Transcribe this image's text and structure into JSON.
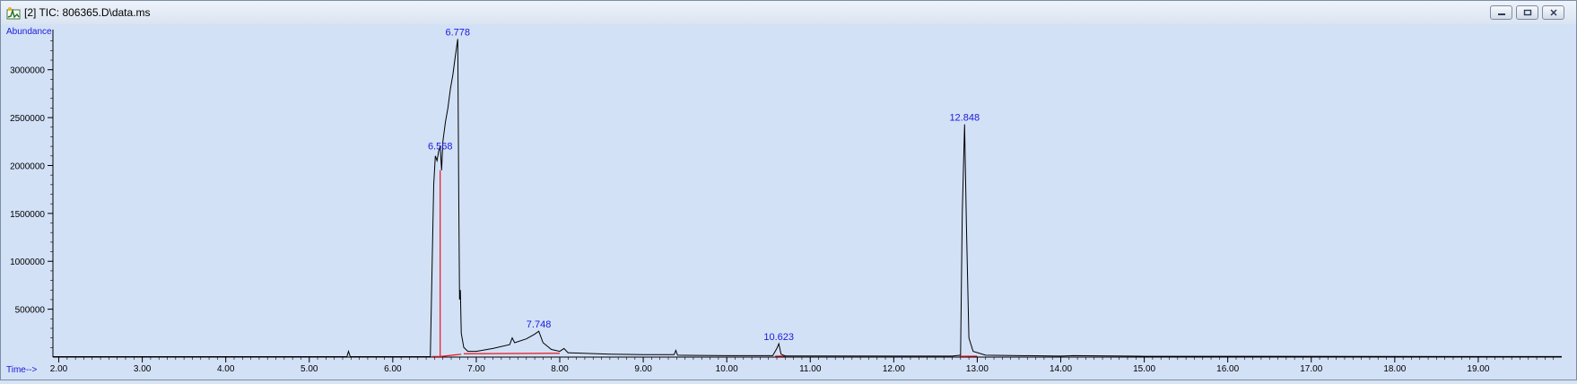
{
  "window": {
    "title": "[2] TIC: 806365.D\\data.ms",
    "app_icon": "chromatogram-icon",
    "controls": [
      "minimize-icon",
      "restore-icon",
      "close-icon"
    ]
  },
  "chart_data": {
    "type": "line",
    "ylabel": "Abundance",
    "xlabel": "Time-->",
    "xlim": [
      1.93,
      20.0
    ],
    "ylim": [
      0,
      3400000
    ],
    "x_ticks": [
      "2.00",
      "3.00",
      "4.00",
      "5.00",
      "6.00",
      "7.00",
      "8.00",
      "9.00",
      "10.00",
      "11.00",
      "12.00",
      "13.00",
      "14.00",
      "15.00",
      "16.00",
      "17.00",
      "18.00",
      "19.00"
    ],
    "y_ticks": [
      "500000",
      "1000000",
      "1500000",
      "2000000",
      "2500000",
      "3000000"
    ],
    "grid": false,
    "colors": {
      "trace": "#000000",
      "integration": "#e8151b",
      "peak_label": "#1a1ad8",
      "axis_label": "#1a1ad8",
      "background": "#d3e1f7"
    },
    "peak_labels": [
      {
        "label": "6.568",
        "x": 6.568,
        "y": 2130000
      },
      {
        "label": "6.778",
        "x": 6.778,
        "y": 3320000
      },
      {
        "label": "7.748",
        "x": 7.748,
        "y": 270000
      },
      {
        "label": "10.623",
        "x": 10.623,
        "y": 140000
      },
      {
        "label": "12.848",
        "x": 12.848,
        "y": 2430000
      }
    ],
    "series": [
      {
        "values_xy": [
          [
            1.93,
            5000
          ],
          [
            5.45,
            5000
          ],
          [
            5.47,
            60000
          ],
          [
            5.49,
            5000
          ],
          [
            6.45,
            6000
          ],
          [
            6.47,
            900000
          ],
          [
            6.49,
            1800000
          ],
          [
            6.51,
            2100000
          ],
          [
            6.53,
            2050000
          ],
          [
            6.55,
            2150000
          ],
          [
            6.568,
            2200000
          ],
          [
            6.585,
            1950000
          ],
          [
            6.6,
            2250000
          ],
          [
            6.63,
            2450000
          ],
          [
            6.66,
            2600000
          ],
          [
            6.69,
            2800000
          ],
          [
            6.72,
            2950000
          ],
          [
            6.75,
            3150000
          ],
          [
            6.778,
            3320000
          ],
          [
            6.79,
            1700000
          ],
          [
            6.8,
            600000
          ],
          [
            6.81,
            700000
          ],
          [
            6.82,
            250000
          ],
          [
            6.85,
            100000
          ],
          [
            6.9,
            60000
          ],
          [
            7.0,
            60000
          ],
          [
            7.2,
            90000
          ],
          [
            7.4,
            130000
          ],
          [
            7.43,
            200000
          ],
          [
            7.46,
            150000
          ],
          [
            7.6,
            190000
          ],
          [
            7.7,
            240000
          ],
          [
            7.748,
            270000
          ],
          [
            7.8,
            150000
          ],
          [
            7.9,
            80000
          ],
          [
            8.0,
            60000
          ],
          [
            8.05,
            90000
          ],
          [
            8.1,
            45000
          ],
          [
            8.6,
            30000
          ],
          [
            9.0,
            25000
          ],
          [
            9.37,
            25000
          ],
          [
            9.39,
            70000
          ],
          [
            9.41,
            20000
          ],
          [
            10.0,
            15000
          ],
          [
            10.55,
            15000
          ],
          [
            10.6,
            90000
          ],
          [
            10.623,
            140000
          ],
          [
            10.65,
            30000
          ],
          [
            10.7,
            12000
          ],
          [
            12.7,
            10000
          ],
          [
            12.8,
            20000
          ],
          [
            12.82,
            1500000
          ],
          [
            12.848,
            2430000
          ],
          [
            12.87,
            1400000
          ],
          [
            12.9,
            200000
          ],
          [
            12.95,
            60000
          ],
          [
            13.1,
            20000
          ],
          [
            14.0,
            10000
          ],
          [
            14.15,
            15000
          ],
          [
            15.0,
            8000
          ],
          [
            20.0,
            6000
          ]
        ]
      }
    ],
    "integration_baselines": [
      {
        "x": [
          6.47,
          6.568
        ],
        "y": [
          6000,
          6000
        ]
      },
      {
        "x": [
          6.568,
          6.82
        ],
        "y": [
          6000,
          30000
        ]
      },
      {
        "x": [
          6.85,
          8.0
        ],
        "y": [
          35000,
          40000
        ]
      },
      {
        "x": [
          10.58,
          10.7
        ],
        "y": [
          10000,
          10000
        ]
      },
      {
        "x": [
          12.79,
          13.0
        ],
        "y": [
          8000,
          10000
        ]
      }
    ],
    "integration_drops": [
      {
        "x": 6.568,
        "y": 1950000
      }
    ]
  }
}
